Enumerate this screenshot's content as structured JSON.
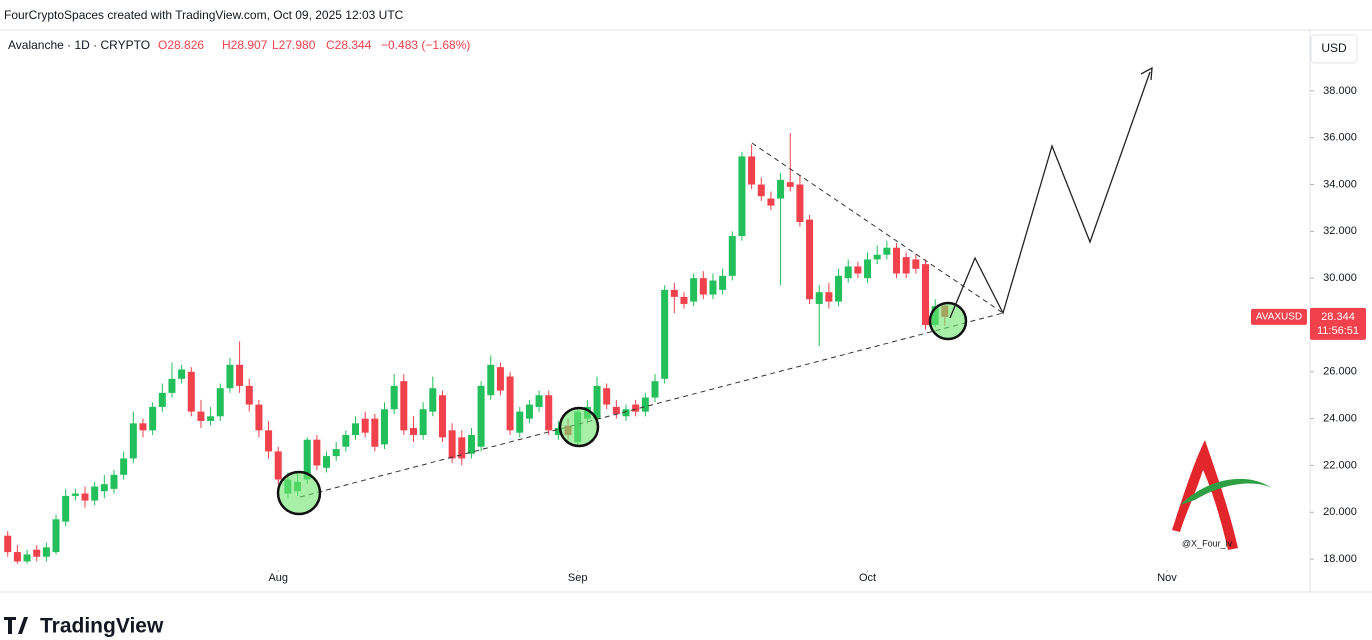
{
  "credit": "FourCryptoSpaces created with TradingView.com, Oct 09, 2025 12:03 UTC",
  "header": {
    "symbol": "Avalanche · 1D · CRYPTO",
    "open": "O28.826",
    "high": "H28.907",
    "low": "L27.980",
    "close": "C28.344",
    "change": "−0.483 (−1.68%)"
  },
  "currency": "USD",
  "price_label": {
    "ticker": "AVAXUSD",
    "price": "28.344",
    "countdown": "11:56:51"
  },
  "watermark": "@X_Four_iv",
  "brand": "TradingView",
  "chart_data": {
    "type": "candlestick",
    "up_color": "#22bf5b",
    "down_color": "#f0414c",
    "x": [
      0,
      1,
      2,
      3,
      4,
      5,
      6,
      7,
      8,
      9,
      10,
      11,
      12,
      13,
      14,
      15,
      16,
      17,
      18,
      19,
      20,
      21,
      22,
      23,
      24,
      25,
      26,
      27,
      28,
      29,
      30,
      31,
      32,
      33,
      34,
      35,
      36,
      37,
      38,
      39,
      40,
      41,
      42,
      43,
      44,
      45,
      46,
      47,
      48,
      49,
      50,
      51,
      52,
      53,
      54,
      55,
      56,
      57,
      58,
      59,
      60,
      61,
      62,
      63,
      64,
      65,
      66,
      67,
      68,
      69,
      70,
      71,
      72,
      73,
      74,
      75,
      76,
      77,
      78,
      79,
      80,
      81,
      82,
      83,
      84,
      85,
      86,
      87,
      88,
      89,
      90,
      91,
      92,
      93,
      94,
      95,
      96,
      97
    ],
    "open": [
      19.0,
      18.3,
      17.9,
      18.4,
      18.1,
      18.3,
      19.6,
      20.7,
      20.8,
      20.5,
      20.9,
      21.0,
      21.6,
      22.3,
      23.8,
      23.5,
      24.5,
      25.1,
      25.7,
      26.0,
      24.3,
      23.9,
      24.1,
      25.3,
      26.3,
      25.4,
      24.6,
      23.5,
      22.6,
      20.8,
      20.9,
      21.4,
      23.1,
      21.9,
      22.4,
      22.8,
      23.3,
      24.0,
      24.0,
      22.9,
      24.4,
      25.6,
      23.6,
      23.3,
      24.3,
      25.0,
      23.5,
      23.2,
      22.5,
      22.8,
      25.0,
      26.2,
      25.8,
      23.4,
      24.0,
      24.5,
      25.0,
      23.3,
      23.7,
      23.0,
      24.0,
      24.0,
      25.3,
      24.5,
      24.1,
      24.6,
      24.3,
      24.9,
      25.7,
      29.5,
      29.2,
      29.0,
      30.0,
      29.3,
      29.5,
      30.1,
      31.8,
      35.2,
      34.0,
      33.4,
      33.4,
      34.1,
      34.0,
      32.5,
      28.9,
      29.4,
      29.0,
      30.0,
      30.5,
      30.0,
      30.8,
      31.0,
      31.3,
      30.9,
      30.8,
      30.6,
      28.0,
      28.826
    ],
    "high": [
      19.2,
      18.6,
      18.4,
      18.6,
      18.7,
      19.9,
      21.0,
      21.0,
      21.1,
      21.3,
      21.6,
      21.8,
      22.6,
      24.3,
      24.0,
      24.7,
      25.5,
      26.4,
      26.3,
      26.2,
      24.8,
      24.5,
      25.5,
      26.6,
      27.3,
      25.7,
      24.8,
      23.9,
      22.8,
      21.7,
      21.7,
      23.2,
      23.3,
      22.6,
      23.0,
      23.5,
      24.1,
      24.3,
      24.2,
      24.7,
      25.9,
      25.9,
      24.1,
      24.7,
      25.8,
      25.2,
      23.8,
      23.5,
      23.6,
      25.6,
      26.7,
      26.4,
      26.0,
      24.5,
      24.8,
      25.2,
      25.2,
      23.9,
      24.0,
      24.5,
      24.8,
      25.8,
      25.5,
      24.8,
      24.6,
      24.8,
      25.1,
      25.9,
      29.7,
      29.8,
      29.4,
      30.2,
      30.3,
      30.2,
      30.4,
      32.0,
      35.4,
      35.7,
      34.3,
      33.7,
      34.5,
      36.2,
      34.4,
      32.7,
      29.7,
      29.8,
      30.4,
      30.8,
      30.7,
      31.1,
      31.4,
      31.6,
      31.5,
      31.1,
      31.0,
      30.8,
      29.1,
      28.907
    ],
    "low": [
      18.1,
      17.8,
      17.8,
      17.9,
      17.9,
      18.2,
      19.4,
      20.5,
      20.2,
      20.3,
      20.6,
      20.8,
      21.4,
      22.1,
      23.2,
      23.3,
      24.3,
      24.9,
      25.5,
      24.1,
      23.6,
      23.7,
      23.9,
      25.1,
      25.1,
      24.3,
      23.2,
      22.3,
      21.2,
      20.6,
      20.7,
      21.2,
      21.8,
      21.7,
      22.2,
      22.6,
      23.1,
      23.2,
      22.6,
      22.7,
      24.2,
      23.3,
      23.0,
      23.1,
      24.1,
      23.0,
      22.1,
      22.0,
      22.3,
      22.6,
      24.8,
      25.0,
      23.3,
      23.2,
      23.8,
      24.3,
      23.3,
      23.1,
      23.1,
      22.8,
      23.8,
      23.8,
      24.4,
      24.0,
      23.9,
      24.1,
      24.1,
      24.7,
      25.5,
      28.5,
      28.7,
      28.8,
      29.1,
      29.1,
      29.3,
      29.9,
      31.6,
      33.8,
      33.3,
      32.9,
      29.7,
      33.7,
      32.2,
      28.9,
      27.1,
      28.7,
      28.8,
      29.8,
      30.0,
      29.8,
      30.6,
      30.8,
      30.0,
      30.0,
      30.2,
      27.8,
      27.9,
      27.98
    ],
    "close": [
      18.3,
      17.9,
      18.2,
      18.1,
      18.5,
      19.7,
      20.7,
      20.8,
      20.5,
      21.1,
      21.2,
      21.6,
      22.3,
      23.8,
      23.5,
      24.5,
      25.1,
      25.7,
      26.1,
      24.3,
      23.9,
      24.1,
      25.3,
      26.3,
      25.4,
      24.6,
      23.5,
      22.6,
      21.4,
      21.4,
      21.3,
      23.1,
      22.0,
      22.4,
      22.7,
      23.3,
      23.8,
      23.4,
      22.8,
      24.4,
      25.4,
      23.5,
      23.3,
      24.4,
      25.3,
      23.2,
      22.3,
      22.3,
      23.3,
      25.4,
      26.3,
      25.2,
      23.5,
      24.3,
      24.6,
      25.0,
      23.5,
      23.6,
      23.3,
      24.3,
      24.5,
      25.4,
      24.6,
      24.2,
      24.4,
      24.3,
      24.9,
      25.6,
      29.5,
      29.2,
      28.9,
      30.0,
      29.3,
      29.9,
      30.1,
      31.8,
      35.2,
      34.0,
      33.5,
      33.1,
      34.2,
      33.9,
      32.4,
      29.1,
      29.4,
      29.0,
      30.1,
      30.5,
      30.2,
      30.8,
      31.0,
      31.3,
      30.2,
      30.2,
      30.4,
      28.0,
      28.8,
      28.344
    ],
    "xlim": [
      -0.8,
      134.8
    ],
    "xticks": [
      {
        "value": 28,
        "label": "Aug"
      },
      {
        "value": 59,
        "label": "Sep"
      },
      {
        "value": 89,
        "label": "Oct"
      },
      {
        "value": 120,
        "label": "Nov"
      }
    ],
    "ylim": [
      17.62,
      40.6
    ],
    "yticks": [
      {
        "value": 18,
        "label": "18.000"
      },
      {
        "value": 20,
        "label": "20.000"
      },
      {
        "value": 22,
        "label": "22.000"
      },
      {
        "value": 24,
        "label": "24.000"
      },
      {
        "value": 26,
        "label": "26.000"
      },
      {
        "value": 28,
        "label": "28.000"
      },
      {
        "value": 30,
        "label": "30.000"
      },
      {
        "value": 32,
        "label": "32.000"
      },
      {
        "value": 34,
        "label": "34.000"
      },
      {
        "value": 36,
        "label": "36.000"
      },
      {
        "value": 38,
        "label": "38.000"
      }
    ]
  }
}
